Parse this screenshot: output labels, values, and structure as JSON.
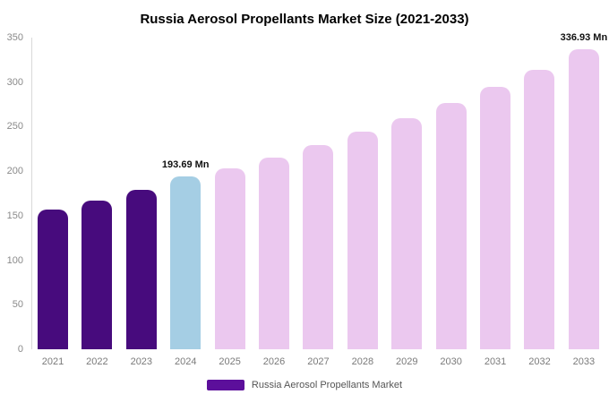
{
  "title": "Russia Aerosol Propellants Market Size (2021-2033)",
  "legend": {
    "label": "Russia Aerosol Propellants Market",
    "color": "#5c0f9b"
  },
  "chart_data": {
    "type": "bar",
    "title": "Russia Aerosol Propellants Market Size (2021-2033)",
    "categories": [
      "2021",
      "2022",
      "2023",
      "2024",
      "2025",
      "2026",
      "2027",
      "2028",
      "2029",
      "2030",
      "2031",
      "2032",
      "2033"
    ],
    "values": [
      157,
      167,
      179,
      193.69,
      203,
      215,
      229,
      244,
      260,
      277,
      295,
      314,
      336.93
    ],
    "bar_colors": [
      "#470b7d",
      "#470b7d",
      "#470b7d",
      "#a5cee4",
      "#ebc8ef",
      "#ebc8ef",
      "#ebc8ef",
      "#ebc8ef",
      "#ebc8ef",
      "#ebc8ef",
      "#ebc8ef",
      "#ebc8ef",
      "#ebc8ef"
    ],
    "annotations": {
      "3": "193.69 Mn",
      "12": "336.93 Mn"
    },
    "xlabel": "",
    "ylabel": "",
    "ylim": [
      0,
      350
    ],
    "yticks": [
      0,
      50,
      100,
      150,
      200,
      250,
      300,
      350
    ],
    "grid": false,
    "legend_position": "bottom",
    "legend_entries": [
      {
        "label": "Russia Aerosol Propellants Market",
        "color": "#5c0f9b"
      }
    ]
  }
}
